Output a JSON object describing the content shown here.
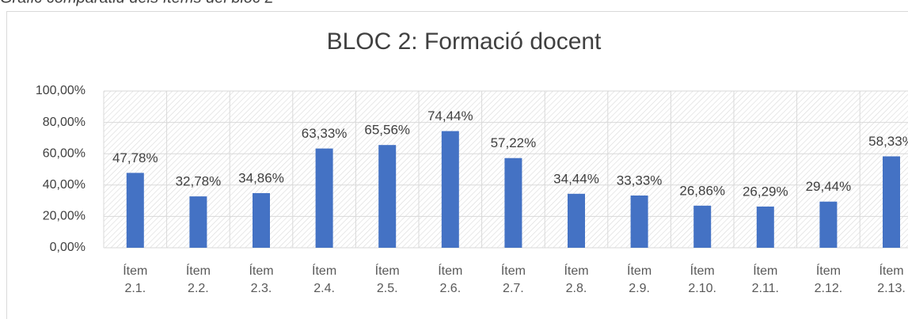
{
  "caption": "Gràfic comparatiu dels ítems del bloc 2",
  "chart_data": {
    "type": "bar",
    "title": "BLOC 2: Formació docent",
    "categories": [
      "Ítem 2.1.",
      "Ítem 2.2.",
      "Ítem 2.3.",
      "Ítem 2.4.",
      "Ítem 2.5.",
      "Ítem 2.6.",
      "Ítem 2.7.",
      "Ítem 2.8.",
      "Ítem 2.9.",
      "Ítem 2.10.",
      "Ítem 2.11.",
      "Ítem 2.12.",
      "Ítem 2.13."
    ],
    "values": [
      47.78,
      32.78,
      34.86,
      63.33,
      65.56,
      74.44,
      57.22,
      34.44,
      33.33,
      26.86,
      26.29,
      29.44,
      58.33
    ],
    "value_labels": [
      "47,78%",
      "32,78%",
      "34,86%",
      "63,33%",
      "65,56%",
      "74,44%",
      "57,22%",
      "34,44%",
      "33,33%",
      "26,86%",
      "26,29%",
      "29,44%",
      "58,33%"
    ],
    "color": "#4472c4",
    "ylim": [
      0,
      100
    ],
    "yticks": [
      {
        "value": 0,
        "label": "0,00%"
      },
      {
        "value": 20,
        "label": "20,00%"
      },
      {
        "value": 40,
        "label": "40,00%"
      },
      {
        "value": 60,
        "label": "60,00%"
      },
      {
        "value": 80,
        "label": "80,00%"
      },
      {
        "value": 100,
        "label": "100,00%"
      }
    ],
    "grid": true
  }
}
